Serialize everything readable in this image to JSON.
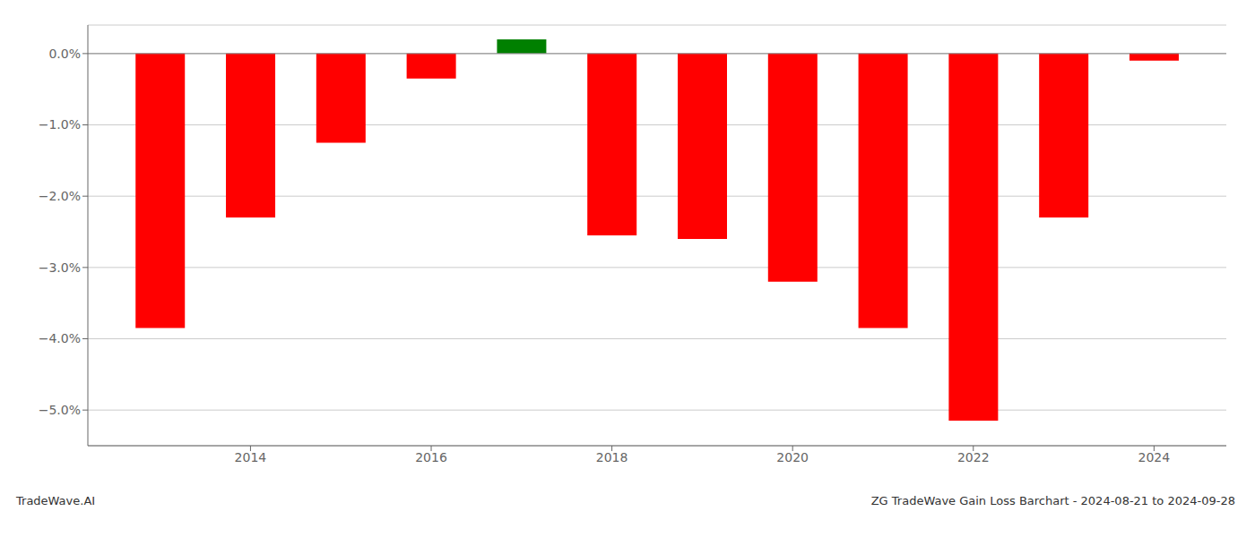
{
  "chart_data": {
    "type": "bar",
    "x": [
      2013,
      2014,
      2015,
      2016,
      2017,
      2018,
      2019,
      2020,
      2021,
      2022,
      2023,
      2024
    ],
    "values": [
      -3.85,
      -2.3,
      -1.25,
      -0.35,
      0.2,
      -2.55,
      -2.6,
      -3.2,
      -3.85,
      -5.15,
      -2.3,
      -0.1
    ],
    "colors": [
      "red",
      "red",
      "red",
      "red",
      "green",
      "red",
      "red",
      "red",
      "red",
      "red",
      "red",
      "red"
    ],
    "xlim": [
      2012.2,
      2024.8
    ],
    "xticks": [
      2014,
      2016,
      2018,
      2020,
      2022,
      2024
    ],
    "ylim": [
      -5.5,
      0.4
    ],
    "yticks": [
      {
        "value": 0.0,
        "label": "0.0%"
      },
      {
        "value": -1.0,
        "label": "−1.0%"
      },
      {
        "value": -2.0,
        "label": "−2.0%"
      },
      {
        "value": -3.0,
        "label": "−3.0%"
      },
      {
        "value": -4.0,
        "label": "−4.0%"
      },
      {
        "value": -5.0,
        "label": "−5.0%"
      }
    ],
    "grid": true,
    "annotations": [
      "TradeWave.AI",
      "ZG TradeWave Gain Loss Barchart - 2024-08-21 to 2024-09-28"
    ]
  }
}
